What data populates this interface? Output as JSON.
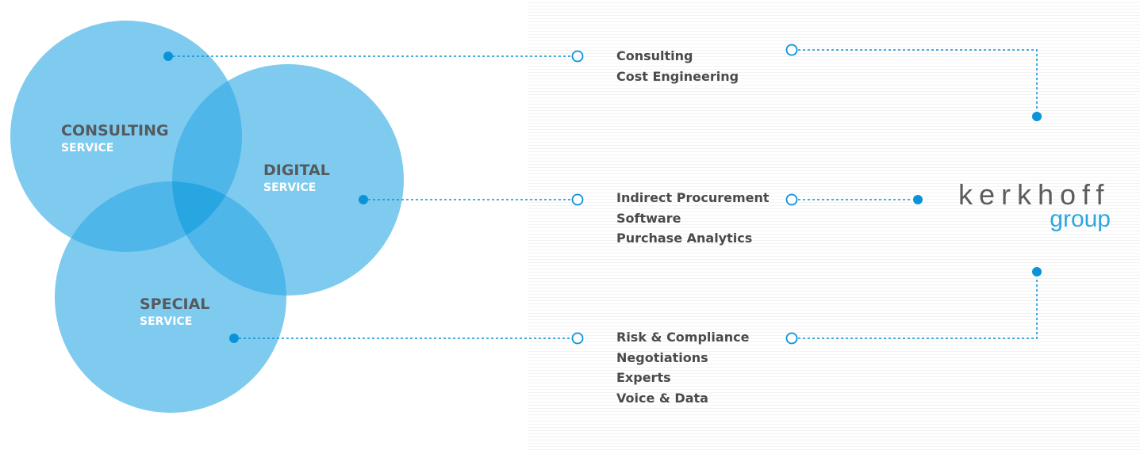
{
  "colors": {
    "circle": "#7ecbef",
    "overlap": "#4fb6e9",
    "center": "#27a6e2",
    "accent": "#0a93d9",
    "text": "#4a4a4a"
  },
  "circles": [
    {
      "title": "CONSULTING",
      "subtitle": "SERVICE"
    },
    {
      "title": "DIGITAL",
      "subtitle": "SERVICE"
    },
    {
      "title": "SPECIAL",
      "subtitle": "SERVICE"
    }
  ],
  "groups": [
    {
      "items": [
        "Consulting",
        "Cost Engineering"
      ]
    },
    {
      "items": [
        "Indirect Procurement",
        "Software",
        "Purchase Analytics"
      ]
    },
    {
      "items": [
        "Risk & Compliance",
        "Negotiations",
        "Experts",
        "Voice & Data"
      ]
    }
  ],
  "logo": {
    "line1": "kerkhoff",
    "line2": "group"
  }
}
